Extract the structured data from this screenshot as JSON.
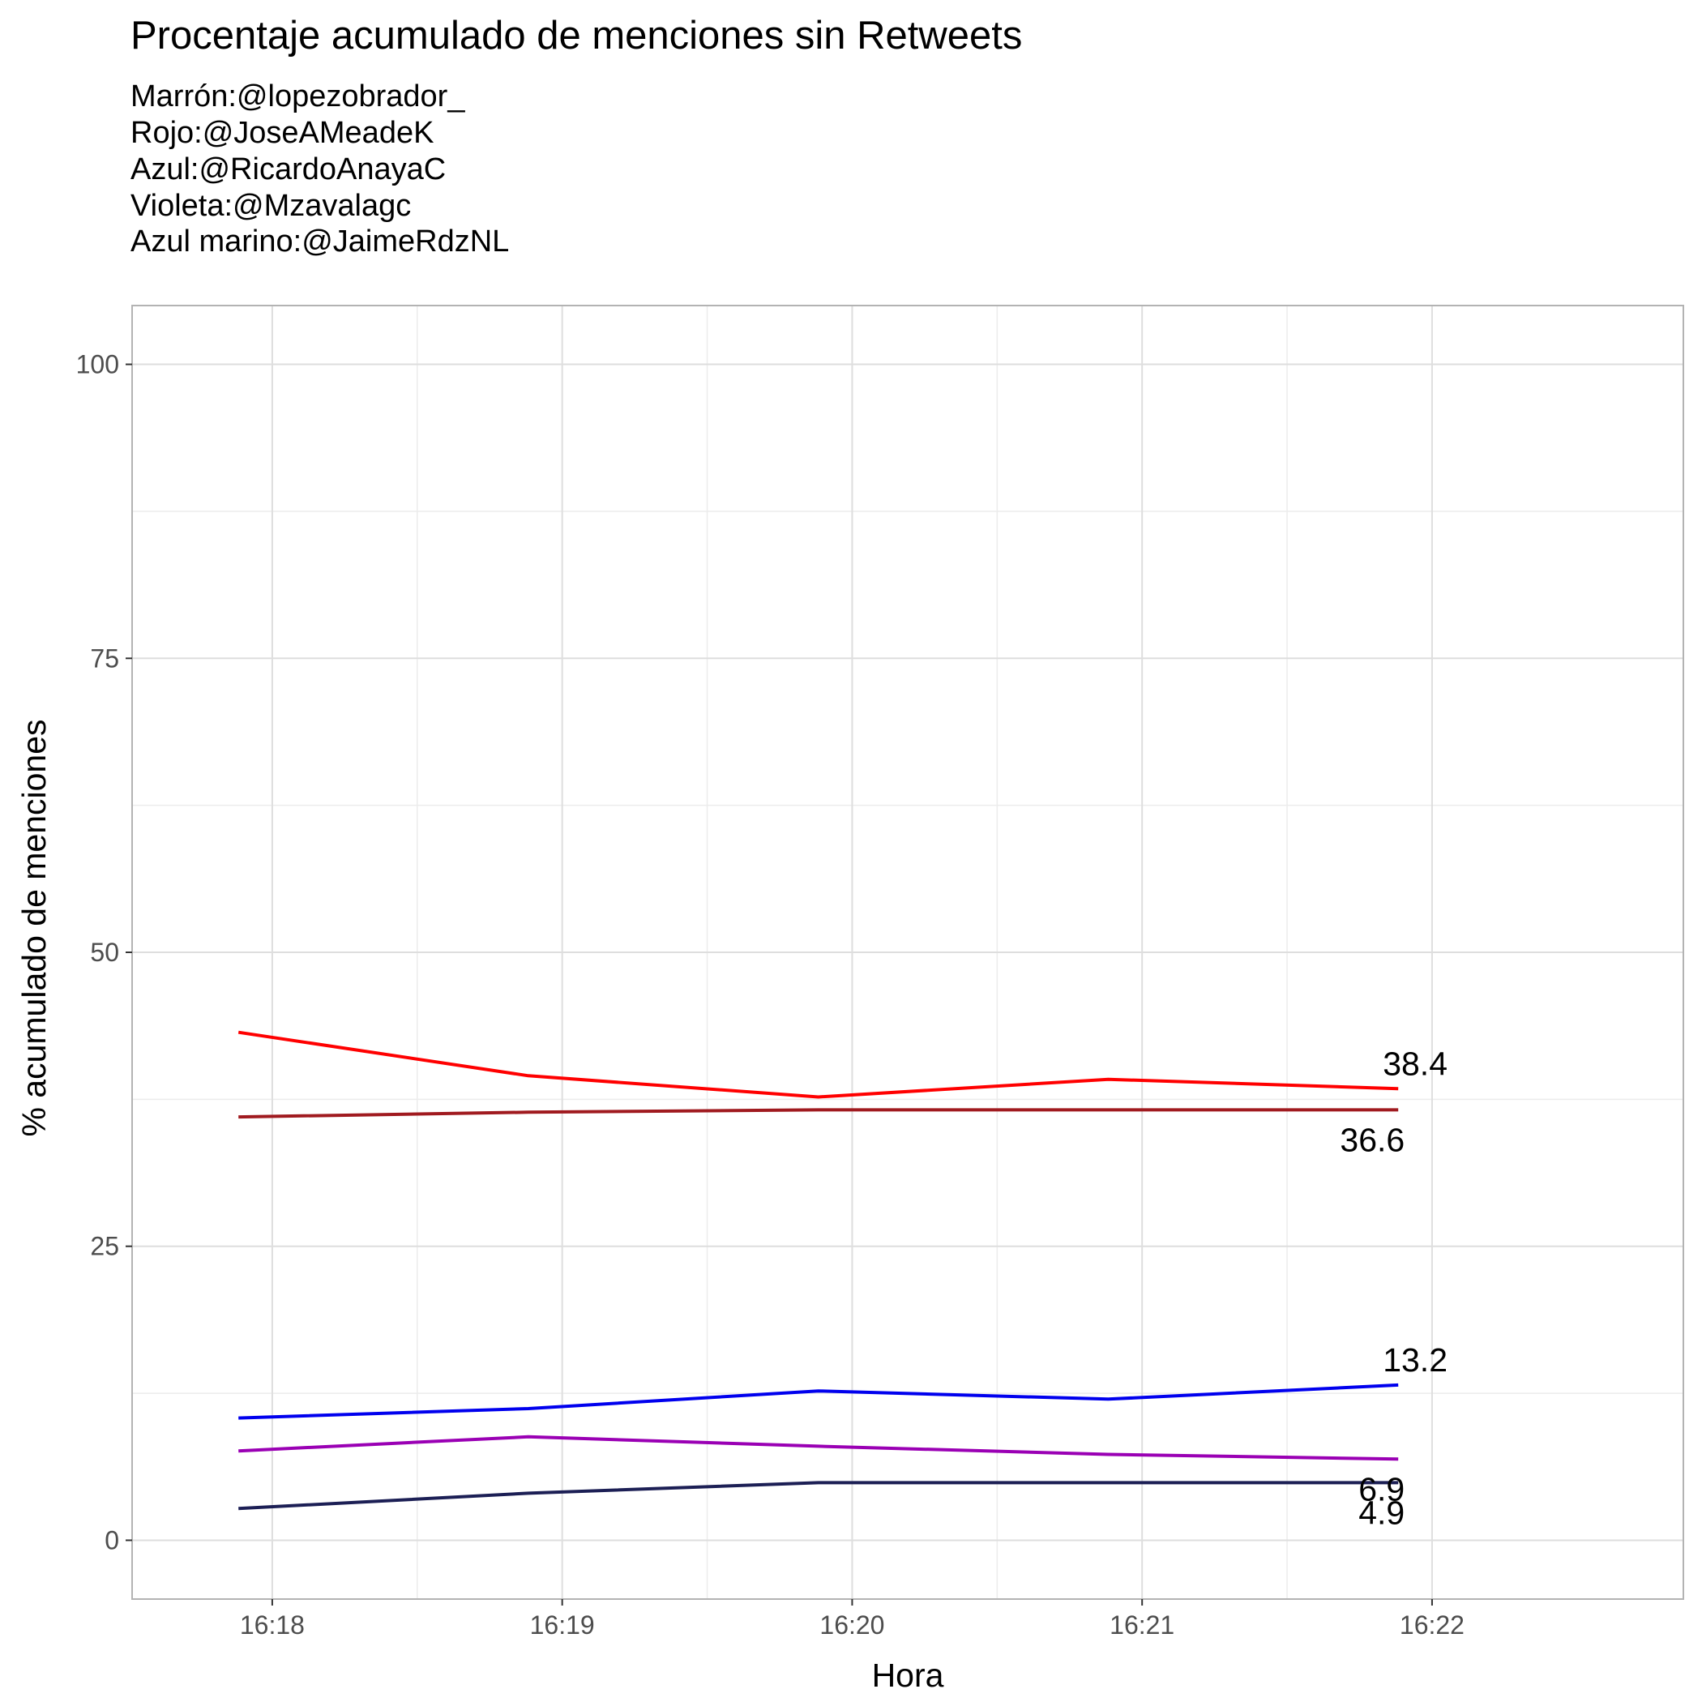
{
  "chart_data": {
    "type": "line",
    "title": "Procentaje acumulado de menciones sin Retweets",
    "subtitle": [
      "Marrón:@lopezobrador_",
      "Rojo:@JoseAMeadeK",
      "Azul:@RicardoAnayaC",
      "Violeta:@Mzavalagc",
      "Azul marino:@JaimeRdzNL"
    ],
    "xlabel": "Hora",
    "ylabel": "% acumulado de menciones",
    "x_ticks": [
      "16:18",
      "16:19",
      "16:20",
      "16:21",
      "16:22"
    ],
    "y_ticks": [
      0,
      25,
      50,
      75,
      100
    ],
    "ylim": [
      -5,
      105
    ],
    "grid": true,
    "legend": "none",
    "x": [
      "16:17:53",
      "16:18:53",
      "16:19:53",
      "16:20:53",
      "16:21:53"
    ],
    "series": [
      {
        "values": [
          36.0,
          36.4,
          36.6,
          36.6,
          36.6
        ],
        "color": "#a01a1f",
        "end_label": "36.6",
        "label_pos": "below"
      },
      {
        "values": [
          43.2,
          39.5,
          37.7,
          39.2,
          38.4
        ],
        "color": "#ff0000",
        "end_label": "38.4",
        "label_pos": "above"
      },
      {
        "values": [
          10.4,
          11.2,
          12.7,
          12.0,
          13.2
        ],
        "color": "#0000ee",
        "end_label": "13.2",
        "label_pos": "above"
      },
      {
        "values": [
          7.6,
          8.8,
          8.0,
          7.3,
          6.9
        ],
        "color": "#9a00b4",
        "end_label": "6.9",
        "label_pos": "below"
      },
      {
        "values": [
          2.7,
          4.0,
          4.9,
          4.9,
          4.9
        ],
        "color": "#1c1f55",
        "end_label": "4.9",
        "label_pos": "below"
      }
    ]
  }
}
